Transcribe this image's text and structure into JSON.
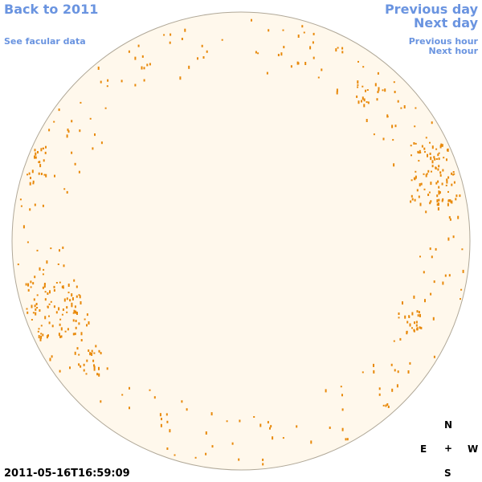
{
  "navigation": {
    "back": "Back to 2011",
    "facular_data": "See facular data",
    "previous_day": "Previous day",
    "next_day": "Next day",
    "previous_hour": "Previous hour",
    "next_hour": "Next hour"
  },
  "timestamp": "2011-05-16T16:59:09",
  "compass": {
    "north": "N",
    "east": "E",
    "center": "+",
    "west": "W",
    "south": "S"
  }
}
